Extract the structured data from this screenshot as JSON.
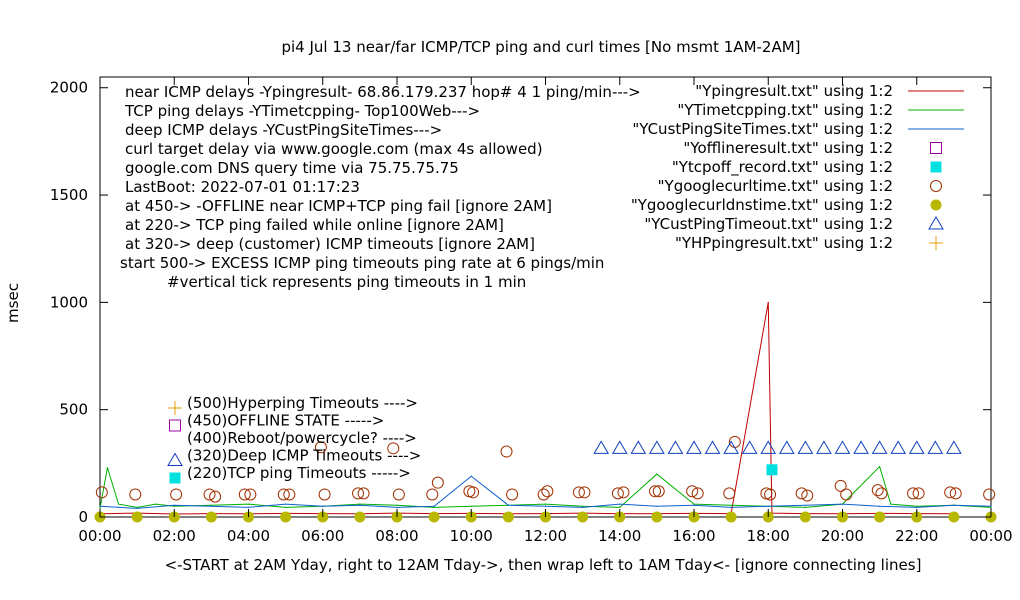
{
  "chart_data": {
    "type": "line",
    "title": "pi4 Jul 13  near/far ICMP/TCP ping and curl times [No msmt 1AM-2AM]",
    "xlabel": "<-START at 2AM Yday, right to 12AM Tday->, then wrap left to 1AM Tday<- [ignore connecting lines]",
    "ylabel": "msec",
    "xlim": [
      0,
      24
    ],
    "ylim": [
      0,
      2050
    ],
    "x_ticks": [
      "00:00",
      "02:00",
      "04:00",
      "06:00",
      "08:00",
      "10:00",
      "12:00",
      "14:00",
      "16:00",
      "18:00",
      "20:00",
      "22:00",
      "00:00"
    ],
    "y_ticks": [
      "0",
      "500",
      "1000",
      "1500",
      "2000"
    ],
    "grid": false,
    "legend_position": "top-right",
    "notes": [
      "near ICMP delays -Ypingresult- 68.86.179.237 hop# 4 1 ping/min--->",
      "TCP ping delays -YTimetcpping- Top100Web--->",
      "deep ICMP delays -YCustPingSiteTimes--->",
      "curl target delay via www.google.com (max 4s allowed)",
      "google.com DNS query time via 75.75.75.75",
      "LastBoot: 2022-07-01 01:17:23",
      "at 450-> -OFFLINE near ICMP+TCP ping fail [ignore 2AM]",
      "at 220-> TCP ping failed while online [ignore 2AM]",
      "at 320-> deep (customer) ICMP timeouts [ignore 2AM]",
      "start 500-> EXCESS ICMP ping timeouts ping rate at 6 pings/min",
      "#vertical tick represents ping timeouts in 1 min"
    ],
    "series": [
      {
        "name": "\"Ypingresult.txt\" using 1:2",
        "color": "#c00000",
        "style": "line",
        "x": [
          0,
          1,
          2,
          3,
          4,
          5,
          6,
          7,
          8,
          9,
          10,
          11,
          12,
          13,
          14,
          15,
          16,
          17,
          18,
          18.05,
          18.1,
          19,
          20,
          21,
          22,
          23
        ],
        "y": [
          15,
          18,
          14,
          16,
          15,
          17,
          16,
          15,
          18,
          16,
          17,
          15,
          16,
          18,
          15,
          16,
          17,
          16,
          1000,
          500,
          18,
          16,
          15,
          17,
          16,
          15
        ]
      },
      {
        "name": "\"YTimetcpping.txt\" using 1:2",
        "color": "#00b000",
        "style": "line",
        "x": [
          0,
          0.2,
          0.5,
          1,
          1.5,
          2,
          3,
          4,
          5,
          6,
          7,
          8,
          9,
          10,
          11,
          12,
          13,
          14,
          15,
          16,
          17,
          18,
          19,
          20,
          21,
          21.3,
          22,
          23,
          24
        ],
        "y": [
          40,
          230,
          60,
          45,
          60,
          50,
          55,
          60,
          45,
          50,
          60,
          55,
          45,
          50,
          55,
          60,
          50,
          45,
          200,
          60,
          55,
          50,
          45,
          60,
          235,
          60,
          50,
          55,
          45
        ]
      },
      {
        "name": "\"YCustPingSiteTimes.txt\" using 1:2",
        "color": "#1060d0",
        "style": "line",
        "x": [
          0,
          1,
          2,
          3,
          4,
          5,
          6,
          7,
          8,
          9,
          10,
          11,
          12,
          13,
          14,
          15,
          16,
          17,
          18,
          19,
          20,
          21,
          22,
          23,
          24
        ],
        "y": [
          50,
          40,
          55,
          50,
          45,
          60,
          50,
          55,
          45,
          50,
          190,
          55,
          50,
          45,
          60,
          50,
          55,
          45,
          50,
          55,
          60,
          50,
          45,
          55,
          50
        ]
      },
      {
        "name": "\"Yofflineresult.txt\" using 1:2",
        "color": "#a000a0",
        "style": "open-square",
        "x": [],
        "y": []
      },
      {
        "name": "\"Ytcpoff_record.txt\" using 1:2",
        "color": "#00e0e0",
        "style": "filled-square",
        "x": [
          18.1
        ],
        "y": [
          220
        ]
      },
      {
        "name": "\"Ygooglecurltime.txt\" using 1:2",
        "color": "#a03000",
        "style": "open-circle",
        "x": [
          0.05,
          0.95,
          2.05,
          2.95,
          3.1,
          3.9,
          4.05,
          4.95,
          5.1,
          5.95,
          6.05,
          6.95,
          7.1,
          7.9,
          8.05,
          8.95,
          9.1,
          9.95,
          10.05,
          10.95,
          11.1,
          11.95,
          12.05,
          12.9,
          13.05,
          13.95,
          14.1,
          14.95,
          15.05,
          15.95,
          16.1,
          16.95,
          17.1,
          17.95,
          18.05,
          18.9,
          19.05,
          19.95,
          20.1,
          20.95,
          21.05,
          21.9,
          22.05,
          22.9,
          23.05,
          23.95
        ],
        "y": [
          115,
          105,
          105,
          105,
          95,
          105,
          105,
          105,
          105,
          325,
          105,
          110,
          110,
          320,
          105,
          105,
          160,
          120,
          115,
          305,
          105,
          105,
          120,
          115,
          115,
          110,
          115,
          120,
          120,
          120,
          110,
          110,
          350,
          110,
          105,
          110,
          100,
          145,
          105,
          125,
          110,
          110,
          110,
          115,
          110,
          105
        ]
      },
      {
        "name": "\"Ygooglecurldnstime.txt\" using 1:2",
        "color": "#b8b800",
        "style": "filled-circle",
        "x": [
          0,
          1,
          2,
          3,
          4,
          5,
          6,
          7,
          8,
          9,
          10,
          11,
          12,
          13,
          14,
          15,
          16,
          17,
          18,
          19,
          20,
          21,
          22,
          23,
          24
        ],
        "y": [
          0,
          0,
          0,
          0,
          0,
          0,
          0,
          0,
          0,
          0,
          0,
          0,
          0,
          0,
          0,
          0,
          0,
          0,
          0,
          0,
          0,
          0,
          0,
          0,
          0
        ]
      },
      {
        "name": "\"YCustPingTimeout.txt\" using 1:2",
        "color": "#1040c0",
        "style": "open-triangle",
        "x": [
          13.5,
          14,
          14.5,
          15,
          15.5,
          16,
          16.5,
          17,
          17.5,
          18,
          18.5,
          19,
          19.5,
          20,
          20.5,
          21,
          21.5,
          22,
          22.5,
          23
        ],
        "y": [
          320,
          320,
          320,
          320,
          320,
          320,
          320,
          320,
          320,
          320,
          320,
          320,
          320,
          320,
          320,
          320,
          320,
          320,
          320,
          320
        ]
      },
      {
        "name": "\"YHPpingresult.txt\" using 1:2",
        "color": "#e0a000",
        "style": "plus",
        "x": [],
        "y": []
      }
    ],
    "markers_key": [
      {
        "label": "(500)Hyperping Timeouts ---->",
        "style": "plus",
        "color": "#e0a000"
      },
      {
        "label": "(450)OFFLINE STATE ----->",
        "style": "open-square",
        "color": "#a000a0"
      },
      {
        "label": "(400)Reboot/powercycle? ---->",
        "style": "none",
        "color": "#000000"
      },
      {
        "label": "(320)Deep ICMP Timeouts ---->",
        "style": "open-triangle",
        "color": "#1040c0"
      },
      {
        "label": "(220)TCP ping Timeouts ----->",
        "style": "filled-square",
        "color": "#00e0e0"
      }
    ]
  }
}
